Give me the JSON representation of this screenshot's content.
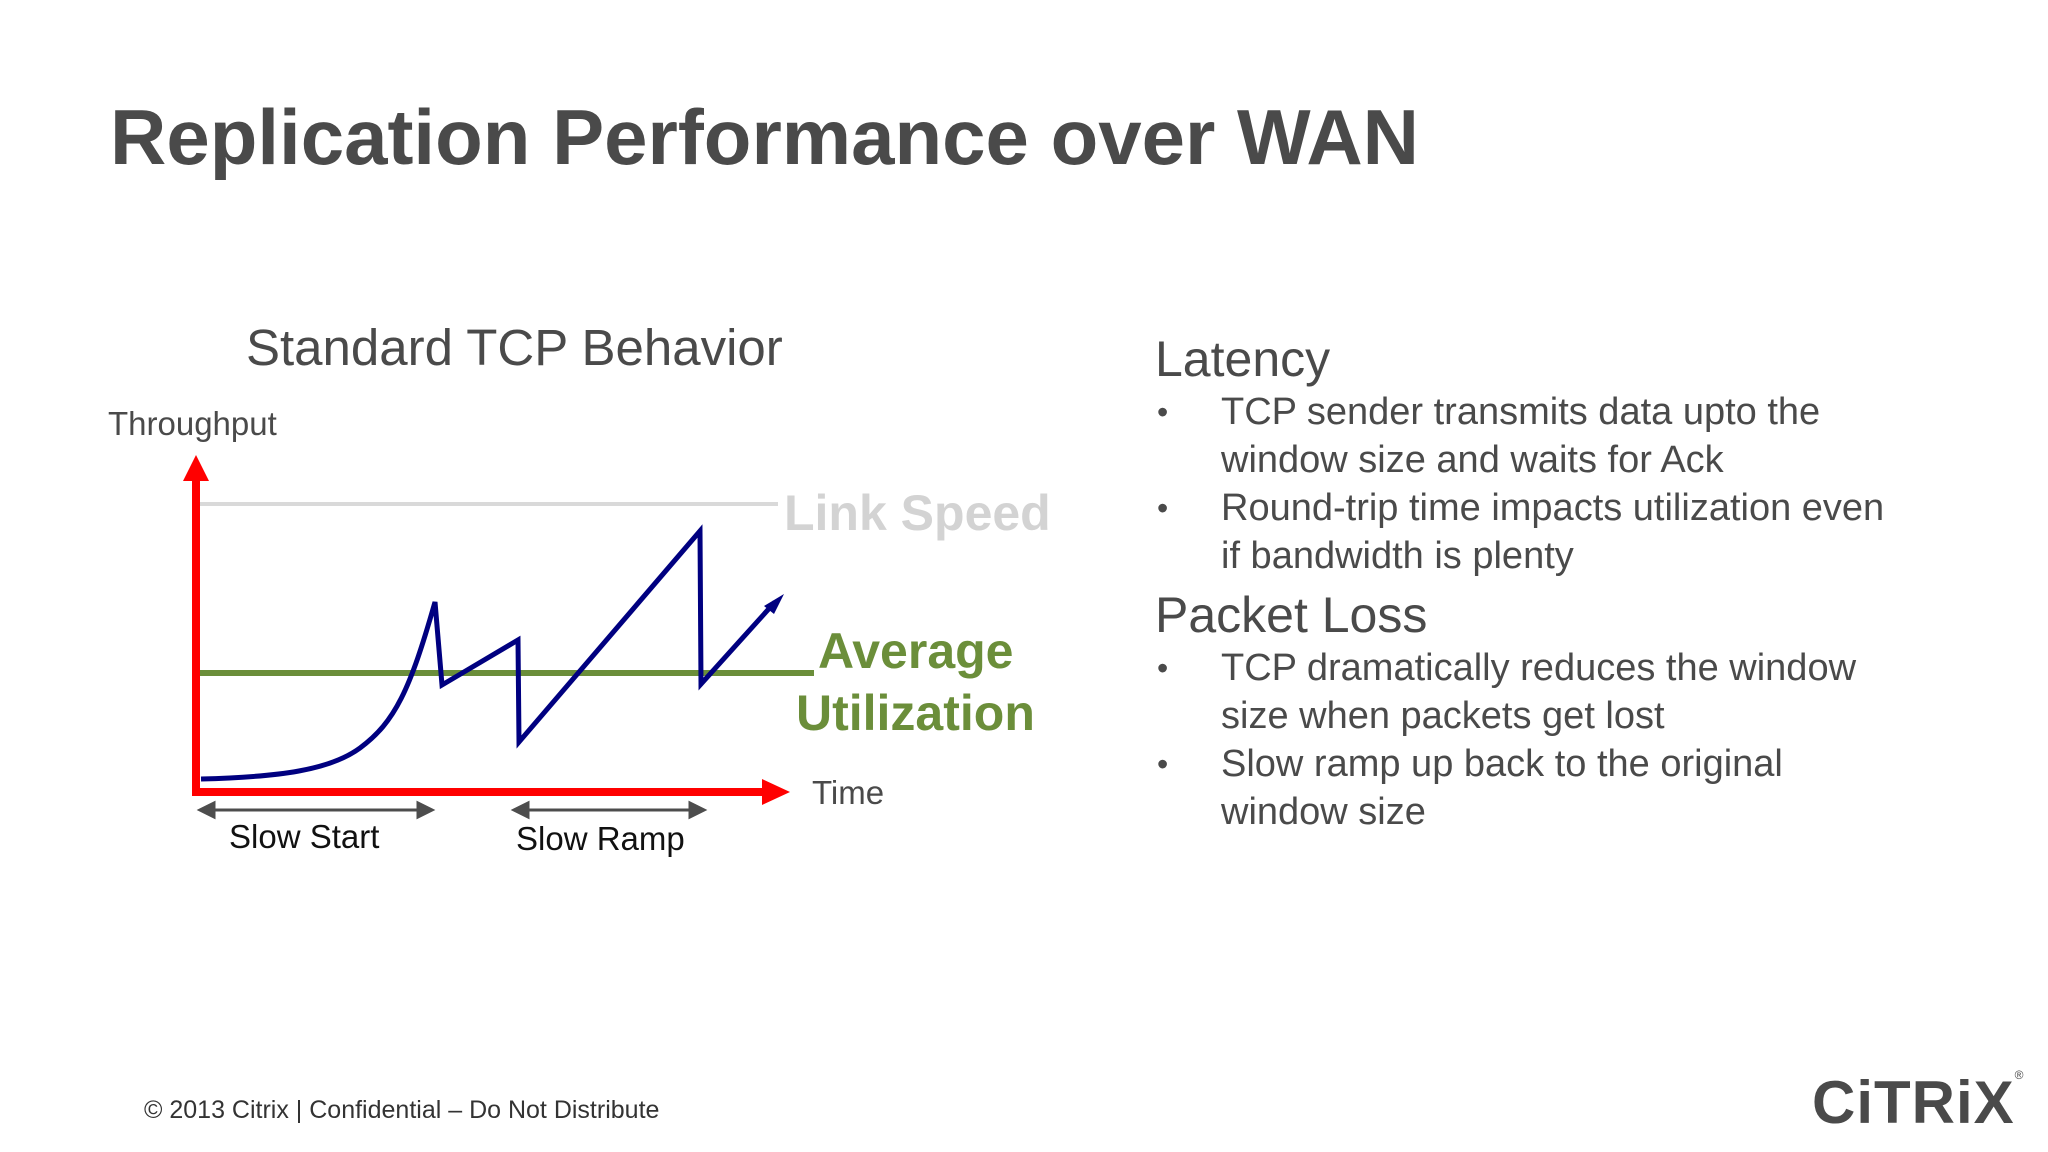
{
  "title": "Replication Performance over WAN",
  "diagram": {
    "title": "Standard TCP Behavior",
    "y_label": "Throughput",
    "x_label": "Time",
    "link_speed_label": "Link Speed",
    "avg_label_line1": "Average",
    "avg_label_line2": "Utilization",
    "phase1_label": "Slow Start",
    "phase2_label": "Slow Ramp",
    "colors": {
      "axis": "#ff0000",
      "throughput": "#000080",
      "average": "#6b8e3a",
      "link_speed": "#d9d9d9"
    }
  },
  "sections": [
    {
      "heading": "Latency",
      "bullets": [
        [
          "TCP sender transmits data upto the",
          "window size and waits for Ack"
        ],
        [
          "Round-trip time impacts utilization even",
          "if bandwidth is plenty"
        ]
      ]
    },
    {
      "heading": "Packet Loss",
      "bullets": [
        [
          "TCP dramatically reduces the window",
          "size when packets get lost"
        ],
        [
          "Slow ramp up back to the original",
          "window size"
        ]
      ]
    }
  ],
  "footer": "© 2013 Citrix | Confidential – Do Not Distribute",
  "logo": {
    "text": "CiTRiX",
    "mark": "®"
  }
}
